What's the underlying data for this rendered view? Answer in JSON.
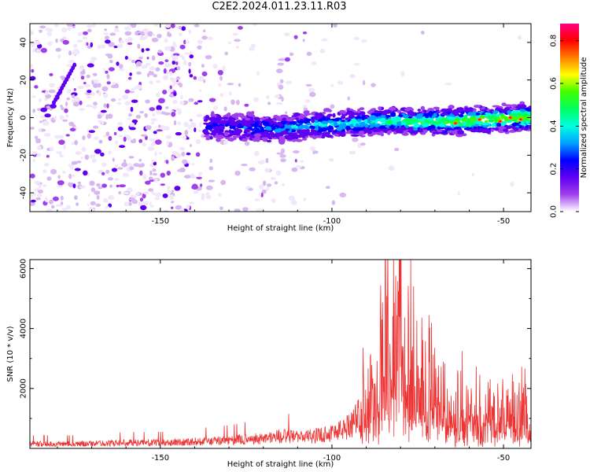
{
  "page_title": "C2E2.2024.011.23.11.R03",
  "chart_data": [
    {
      "type": "heatmap",
      "xlabel": "Height of straight line (km)",
      "ylabel": "Frequency (Hz)",
      "xlim": [
        -188,
        -42
      ],
      "ylim": [
        -50,
        50
      ],
      "x_ticks": [
        -150,
        -100,
        -50
      ],
      "y_ticks": [
        -40,
        -20,
        0,
        20,
        40
      ],
      "grid": false,
      "colorbar": {
        "label": "Normalized spectral amplitude",
        "range": [
          0.0,
          0.8
        ],
        "ticks": [
          0.0,
          0.2,
          0.4,
          0.6,
          0.8
        ],
        "colors": [
          "#f2e6fa",
          "#d8b8f0",
          "#a040ec",
          "#6000f0",
          "#0000ff",
          "#00a0ff",
          "#00ffe0",
          "#00ff60",
          "#40ff00",
          "#ffff00",
          "#ff8000",
          "#ff0000",
          "#ff0080"
        ]
      },
      "series": [
        {
          "name": "",
          "x": [
            -135,
            -125,
            -115,
            -105,
            -95,
            -85,
            -75,
            -65,
            -55,
            -45
          ],
          "values": [
            -5,
            -5,
            -6,
            -4,
            -3,
            -2,
            -2,
            -2,
            -1,
            0
          ]
        }
      ]
    },
    {
      "type": "line",
      "xlabel": "Height of straight line (km)",
      "ylabel": "SNR (10 * v/v)",
      "xlim": [
        -188,
        -42
      ],
      "ylim": [
        0,
        6300
      ],
      "x_ticks": [
        -150,
        -100,
        -50
      ],
      "y_ticks": [
        2000,
        4000,
        6000
      ],
      "color": "#ee3333",
      "grid": false,
      "series": [
        {
          "name": "",
          "x": [
            -188,
            -175,
            -160,
            -150,
            -140,
            -130,
            -120,
            -115,
            -110,
            -105,
            -100,
            -96,
            -92,
            -90,
            -88,
            -85,
            -82,
            -80,
            -78,
            -75,
            -72,
            -70,
            -65,
            -60,
            -55,
            -50,
            -45,
            -42
          ],
          "values": [
            200,
            200,
            250,
            250,
            300,
            350,
            450,
            550,
            500,
            550,
            700,
            900,
            1500,
            2800,
            3500,
            4600,
            6000,
            5200,
            4400,
            3500,
            3000,
            2500,
            2200,
            2000,
            1900,
            1800,
            2000,
            1100
          ]
        }
      ]
    }
  ]
}
